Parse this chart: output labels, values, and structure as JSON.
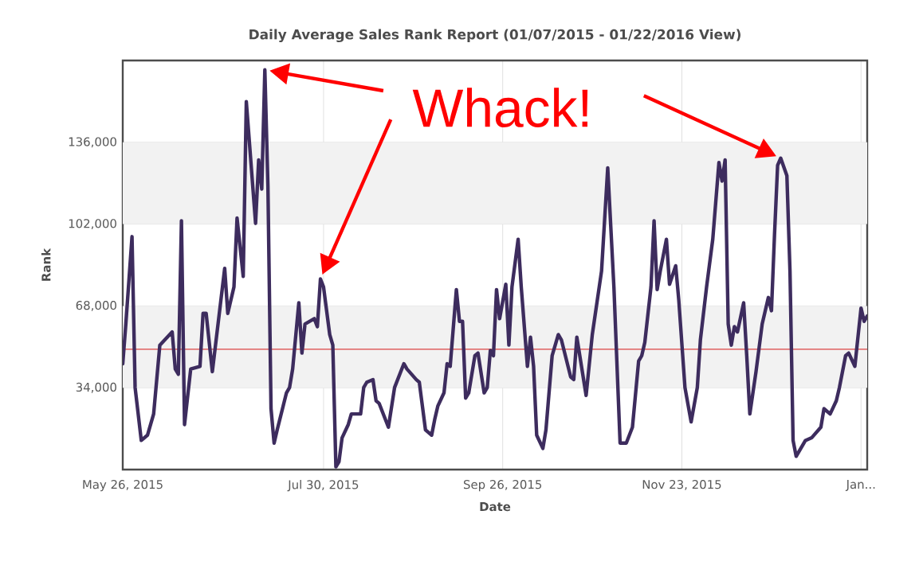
{
  "chart_data": {
    "type": "line",
    "title": "Daily Average Sales Rank Report (01/07/2015 - 01/22/2016 View)",
    "xlabel": "Date",
    "ylabel": "Rank",
    "x": [
      "2015-05-26",
      "2015-05-27",
      "2015-05-29",
      "2015-05-30",
      "2015-06-01",
      "2015-06-03",
      "2015-06-05",
      "2015-06-07",
      "2015-06-11",
      "2015-06-12",
      "2015-06-13",
      "2015-06-14",
      "2015-06-15",
      "2015-06-17",
      "2015-06-20",
      "2015-06-21",
      "2015-06-22",
      "2015-06-24",
      "2015-06-28",
      "2015-06-29",
      "2015-07-01",
      "2015-07-02",
      "2015-07-04",
      "2015-07-05",
      "2015-07-08",
      "2015-07-09",
      "2015-07-10",
      "2015-07-11",
      "2015-07-12",
      "2015-07-13",
      "2015-07-14",
      "2015-07-15",
      "2015-07-18",
      "2015-07-19",
      "2015-07-20",
      "2015-07-22",
      "2015-07-23",
      "2015-07-24",
      "2015-07-27",
      "2015-07-28",
      "2015-07-29",
      "2015-07-30",
      "2015-08-01",
      "2015-08-02",
      "2015-08-03",
      "2015-08-04",
      "2015-08-05",
      "2015-08-07",
      "2015-08-08",
      "2015-08-11",
      "2015-08-12",
      "2015-08-13",
      "2015-08-15",
      "2015-08-16",
      "2015-08-17",
      "2015-08-20",
      "2015-08-22",
      "2015-08-25",
      "2015-08-26",
      "2015-08-29",
      "2015-08-30",
      "2015-09-01",
      "2015-09-03",
      "2015-09-04",
      "2015-09-05",
      "2015-09-07",
      "2015-09-08",
      "2015-09-09",
      "2015-09-11",
      "2015-09-12",
      "2015-09-13",
      "2015-09-14",
      "2015-09-15",
      "2015-09-17",
      "2015-09-18",
      "2015-09-20",
      "2015-09-21",
      "2015-09-22",
      "2015-09-23",
      "2015-09-24",
      "2015-09-25",
      "2015-09-27",
      "2015-09-28",
      "2015-09-29",
      "2015-10-01",
      "2015-10-02",
      "2015-10-04",
      "2015-10-05",
      "2015-10-06",
      "2015-10-07",
      "2015-10-09",
      "2015-10-10",
      "2015-10-12",
      "2015-10-14",
      "2015-10-15",
      "2015-10-18",
      "2015-10-19",
      "2015-10-20",
      "2015-10-23",
      "2015-10-25",
      "2015-10-28",
      "2015-10-30",
      "2015-11-01",
      "2015-11-03",
      "2015-11-05",
      "2015-11-07",
      "2015-11-09",
      "2015-11-10",
      "2015-11-11",
      "2015-11-13",
      "2015-11-14",
      "2015-11-15",
      "2015-11-16",
      "2015-11-18",
      "2015-11-19",
      "2015-11-21",
      "2015-11-22",
      "2015-11-24",
      "2015-11-26",
      "2015-11-28",
      "2015-11-29",
      "2015-12-01",
      "2015-12-03",
      "2015-12-05",
      "2015-12-06",
      "2015-12-07",
      "2015-12-08",
      "2015-12-09",
      "2015-12-10",
      "2015-12-11",
      "2015-12-13",
      "2015-12-14",
      "2015-12-15",
      "2015-12-17",
      "2015-12-19",
      "2015-12-21",
      "2015-12-22",
      "2015-12-23",
      "2015-12-24",
      "2015-12-25",
      "2015-12-27",
      "2015-12-28",
      "2015-12-29",
      "2015-12-30",
      "2016-01-02",
      "2016-01-04",
      "2016-01-07",
      "2016-01-08",
      "2016-01-10",
      "2016-01-12",
      "2016-01-13",
      "2016-01-15",
      "2016-01-16",
      "2016-01-18",
      "2016-01-20",
      "2016-01-21",
      "2016-01-22"
    ],
    "series": [
      {
        "color": "#3d2c5e",
        "values": [
          44000,
          60500,
          96800,
          34100,
          12100,
          14300,
          23100,
          51700,
          57200,
          41800,
          39600,
          103400,
          18700,
          41800,
          42900,
          64900,
          64900,
          40700,
          83600,
          64900,
          75900,
          104500,
          80300,
          152900,
          102300,
          128700,
          116600,
          166100,
          117700,
          25300,
          11000,
          16500,
          31900,
          34100,
          41800,
          69300,
          48400,
          60500,
          62700,
          59400,
          79200,
          75900,
          56100,
          51700,
          1100,
          3300,
          13200,
          18700,
          23100,
          23100,
          34100,
          36300,
          37400,
          28600,
          27500,
          17600,
          34100,
          44000,
          41800,
          37400,
          36300,
          16500,
          14300,
          20900,
          26400,
          31900,
          44000,
          42900,
          74800,
          61600,
          61600,
          29700,
          31900,
          47300,
          48400,
          31900,
          34100,
          49500,
          47300,
          74800,
          62700,
          77000,
          51700,
          75900,
          95700,
          75900,
          42900,
          55000,
          42900,
          14300,
          8800,
          16500,
          47300,
          56100,
          53900,
          38500,
          37400,
          55000,
          30800,
          56100,
          82500,
          125400,
          75900,
          11000,
          11000,
          17600,
          45100,
          47300,
          52800,
          75900,
          103400,
          74800,
          82500,
          95700,
          77000,
          84700,
          70400,
          34100,
          19800,
          34100,
          53900,
          75900,
          95700,
          127600,
          119900,
          128700,
          60500,
          51700,
          59400,
          57200,
          69300,
          47300,
          23100,
          40700,
          60500,
          71500,
          66000,
          97900,
          126500,
          129400,
          122100,
          82500,
          12100,
          5500,
          12100,
          13200,
          17600,
          25300,
          23100,
          28600,
          34100,
          47300,
          48400,
          42900,
          67100,
          61600,
          63800
        ]
      }
    ],
    "xlim": [
      "2015-05-26",
      "2016-01-22"
    ],
    "xticks": [
      {
        "value": "2015-05-26",
        "label": "May 26, 2015"
      },
      {
        "value": "2015-07-30",
        "label": "Jul 30, 2015"
      },
      {
        "value": "2015-09-26",
        "label": "Sep 26, 2015"
      },
      {
        "value": "2015-11-23",
        "label": "Nov 23, 2015"
      },
      {
        "value": "2016-01-20",
        "label": "Jan..."
      }
    ],
    "ylim": [
      0,
      170000
    ],
    "yticks": [
      {
        "value": 34000,
        "label": "34,000"
      },
      {
        "value": 68000,
        "label": "68,000"
      },
      {
        "value": 102000,
        "label": "102,000"
      },
      {
        "value": 136000,
        "label": "136,000"
      }
    ],
    "bands": [
      {
        "axis": "y",
        "from": 34000,
        "to": 68000,
        "color": "#f2f2f2"
      },
      {
        "axis": "y",
        "from": 102000,
        "to": 136000,
        "color": "#f2f2f2"
      }
    ],
    "ref_lines": [
      {
        "axis": "y",
        "value": 50000,
        "color": "#e06060"
      }
    ],
    "grid": true,
    "marker": "none",
    "line_style": "solid",
    "annotations": [
      {
        "text": "Whack!",
        "x": "2015-07-11",
        "y": 166100
      }
    ]
  }
}
